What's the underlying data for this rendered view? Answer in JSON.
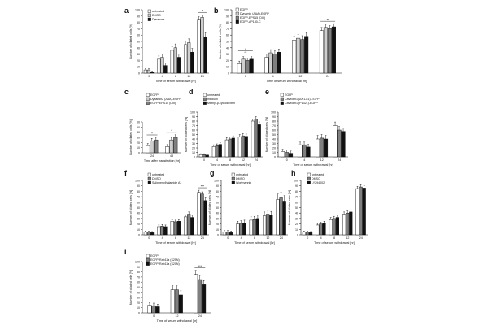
{
  "figure": {
    "colors": {
      "white": "#ffffff",
      "light": "#cfcfcf",
      "mid": "#7f7f7f",
      "black": "#111111"
    }
  },
  "chart_data": [
    {
      "panel": "a",
      "type": "bar",
      "ylabel": "Number of ciliated cells [%]",
      "xlabel": "Time of serum withdrawal [hr]",
      "ylim": [
        0,
        100
      ],
      "ticks": [
        0,
        10,
        20,
        30,
        40,
        50,
        60,
        70,
        80,
        90,
        100
      ],
      "categories": [
        "0",
        "4",
        "8",
        "12",
        "24"
      ],
      "series": [
        {
          "name": "untreated",
          "color": "white",
          "values": [
            5,
            22,
            36,
            45,
            85
          ],
          "errors": [
            2,
            5,
            6,
            6,
            4
          ]
        },
        {
          "name": "DMSO",
          "color": "light",
          "values": [
            5,
            25,
            40,
            48,
            88
          ],
          "errors": [
            2,
            5,
            6,
            6,
            4
          ]
        },
        {
          "name": "Dynasore",
          "color": "black",
          "values": [
            2,
            12,
            25,
            33,
            57
          ],
          "errors": [
            1,
            4,
            5,
            6,
            7
          ]
        }
      ],
      "sig": [
        {
          "cat": 4,
          "label": "*"
        }
      ]
    },
    {
      "panel": "b",
      "type": "bar",
      "ylabel": "Number of ciliated cells [%]",
      "xlabel": "Time of serum withdrawal [hr]",
      "ylim": [
        0,
        100
      ],
      "ticks": [
        0,
        10,
        20,
        30,
        40,
        50,
        60,
        70,
        80,
        90,
        100
      ],
      "categories": [
        "0",
        "4",
        "12",
        "24"
      ],
      "series": [
        {
          "name": "EGFP",
          "color": "white",
          "values": [
            15,
            25,
            52,
            67
          ],
          "errors": [
            4,
            5,
            6,
            5
          ]
        },
        {
          "name": "Dynamin (ΔAA)-EGFP",
          "color": "light",
          "values": [
            22,
            32,
            55,
            72
          ],
          "errors": [
            4,
            5,
            6,
            5
          ]
        },
        {
          "name": "EGFP-EPS15 (DIII)",
          "color": "mid",
          "values": [
            20,
            30,
            53,
            70
          ],
          "errors": [
            4,
            5,
            6,
            5
          ]
        },
        {
          "name": "EGFP-AP180-C",
          "color": "black",
          "values": [
            22,
            33,
            58,
            73
          ],
          "errors": [
            4,
            5,
            6,
            5
          ]
        }
      ],
      "sig": [
        {
          "cat": 0,
          "label": "**"
        },
        {
          "cat": 0,
          "label": "*"
        },
        {
          "cat": 3,
          "label": "**"
        }
      ]
    },
    {
      "panel": "c",
      "type": "bar",
      "ylabel": "Number of ciliated cells [%]",
      "xlabel": "Time after transfection [hr]",
      "ylim": [
        0,
        60
      ],
      "ticks": [
        0,
        10,
        20,
        30,
        40,
        50,
        60
      ],
      "categories": [
        "24",
        "48"
      ],
      "series": [
        {
          "name": "EGFP",
          "color": "white",
          "values": [
            14,
            12
          ],
          "errors": [
            4,
            4
          ]
        },
        {
          "name": "Dynamin2 (ΔAA)-EGFP",
          "color": "light",
          "values": [
            23,
            25
          ],
          "errors": [
            5,
            5
          ]
        },
        {
          "name": "EGFP-EPS15 (DIII)",
          "color": "mid",
          "values": [
            25,
            30
          ],
          "errors": [
            5,
            5
          ]
        }
      ],
      "sig": [
        {
          "cat": 0,
          "label": "*"
        },
        {
          "cat": 1,
          "label": "*"
        }
      ]
    },
    {
      "panel": "d",
      "type": "bar",
      "ylabel": "Number of ciliated cells [%]",
      "xlabel": "Time of serum withdrawal [hr]",
      "ylim": [
        0,
        100
      ],
      "ticks": [
        0,
        10,
        20,
        30,
        40,
        50,
        60,
        70,
        80,
        90,
        100
      ],
      "categories": [
        "0",
        "4",
        "8",
        "12",
        "24"
      ],
      "series": [
        {
          "name": "untreated",
          "color": "white",
          "values": [
            5,
            23,
            38,
            45,
            80
          ],
          "errors": [
            2,
            4,
            5,
            5,
            5
          ]
        },
        {
          "name": "medium",
          "color": "mid",
          "values": [
            5,
            25,
            40,
            47,
            85
          ],
          "errors": [
            2,
            4,
            5,
            5,
            5
          ]
        },
        {
          "name": "Methyl-β-cyclodextrin",
          "color": "black",
          "values": [
            4,
            28,
            42,
            46,
            72
          ],
          "errors": [
            2,
            4,
            5,
            5,
            6
          ]
        }
      ],
      "sig": []
    },
    {
      "panel": "e",
      "type": "bar",
      "ylabel": "Number of ciliated cells [%]",
      "xlabel": "Time of serum withdrawal [hr]",
      "ylim": [
        0,
        100
      ],
      "ticks": [
        0,
        10,
        20,
        30,
        40,
        50,
        60,
        70,
        80,
        90,
        100
      ],
      "categories": [
        "0",
        "4",
        "12",
        "24"
      ],
      "series": [
        {
          "name": "EGFP",
          "color": "white",
          "values": [
            12,
            27,
            40,
            70
          ],
          "errors": [
            5,
            6,
            8,
            8
          ]
        },
        {
          "name": "Caveolin1 (ΔN1-81)-EGFP",
          "color": "mid",
          "values": [
            10,
            27,
            42,
            60
          ],
          "errors": [
            5,
            6,
            8,
            8
          ]
        },
        {
          "name": "Caveolin1 (P132L)-EGFP",
          "color": "black",
          "values": [
            8,
            22,
            40,
            57
          ],
          "errors": [
            5,
            6,
            8,
            8
          ]
        }
      ],
      "sig": []
    },
    {
      "panel": "f",
      "type": "bar",
      "ylabel": "Number of ciliated cells [%]",
      "xlabel": "Time of serum withdrawal [hr]",
      "ylim": [
        0,
        100
      ],
      "ticks": [
        0,
        10,
        20,
        30,
        40,
        50,
        60,
        70,
        80,
        90,
        100
      ],
      "categories": [
        "0",
        "4",
        "8",
        "12",
        "24"
      ],
      "series": [
        {
          "name": "untreated",
          "color": "white",
          "values": [
            5,
            15,
            25,
            33,
            78
          ],
          "errors": [
            2,
            3,
            3,
            4,
            4
          ]
        },
        {
          "name": "DMSO",
          "color": "mid",
          "values": [
            5,
            16,
            24,
            38,
            75
          ],
          "errors": [
            2,
            3,
            3,
            4,
            4
          ]
        },
        {
          "name": "Saliphenylhalamide A1",
          "color": "black",
          "values": [
            4,
            15,
            25,
            32,
            63
          ],
          "errors": [
            2,
            3,
            3,
            4,
            5
          ]
        }
      ],
      "sig": [
        {
          "cat": 4,
          "label": "***"
        }
      ]
    },
    {
      "panel": "g",
      "type": "bar",
      "ylabel": "Number of ciliated cells [%]",
      "xlabel": "Time of serum withdrawal [hr]",
      "ylim": [
        0,
        100
      ],
      "ticks": [
        0,
        10,
        20,
        30,
        40,
        50,
        60,
        70,
        80,
        90,
        100
      ],
      "categories": [
        "0",
        "4",
        "8",
        "12",
        "24"
      ],
      "series": [
        {
          "name": "untreated",
          "color": "white",
          "values": [
            5,
            20,
            27,
            35,
            65
          ],
          "errors": [
            3,
            5,
            6,
            7,
            10
          ]
        },
        {
          "name": "DMSO",
          "color": "mid",
          "values": [
            5,
            21,
            28,
            38,
            68
          ],
          "errors": [
            3,
            5,
            6,
            7,
            10
          ]
        },
        {
          "name": "Wortmannin",
          "color": "black",
          "values": [
            4,
            22,
            30,
            36,
            62
          ],
          "errors": [
            3,
            5,
            6,
            7,
            10
          ]
        }
      ],
      "sig": []
    },
    {
      "panel": "h",
      "type": "bar",
      "ylabel": "Number of ciliated cells [%]",
      "xlabel": "Time of serum withdrawal [hr]",
      "ylim": [
        0,
        100
      ],
      "ticks": [
        0,
        10,
        20,
        30,
        40,
        50,
        60,
        70,
        80,
        90,
        100
      ],
      "categories": [
        "0",
        "4",
        "8",
        "12",
        "24"
      ],
      "series": [
        {
          "name": "untreated",
          "color": "white",
          "values": [
            5,
            18,
            28,
            38,
            85
          ],
          "errors": [
            2,
            3,
            4,
            4,
            4
          ]
        },
        {
          "name": "DMSO",
          "color": "mid",
          "values": [
            5,
            20,
            30,
            40,
            88
          ],
          "errors": [
            2,
            3,
            4,
            4,
            4
          ]
        },
        {
          "name": "LY294002",
          "color": "black",
          "values": [
            4,
            22,
            32,
            42,
            86
          ],
          "errors": [
            2,
            3,
            4,
            4,
            4
          ]
        }
      ],
      "sig": []
    },
    {
      "panel": "i",
      "type": "bar",
      "ylabel": "Number of ciliated cells [%]",
      "xlabel": "Time of serum withdrawal [hr]",
      "ylim": [
        0,
        100
      ],
      "ticks": [
        0,
        10,
        20,
        30,
        40,
        50,
        60,
        70,
        80,
        90,
        100
      ],
      "categories": [
        "0",
        "12",
        "24"
      ],
      "series": [
        {
          "name": "EGFP",
          "color": "white",
          "values": [
            15,
            45,
            75
          ],
          "errors": [
            5,
            8,
            8
          ]
        },
        {
          "name": "EGFP-Rab11a (S25N)",
          "color": "mid",
          "values": [
            14,
            45,
            65
          ],
          "errors": [
            5,
            8,
            8
          ]
        },
        {
          "name": "EGFP-Rab11a (S20N)",
          "color": "black",
          "values": [
            12,
            35,
            55
          ],
          "errors": [
            5,
            8,
            8
          ]
        }
      ],
      "sig": [
        {
          "cat": 2,
          "label": "***"
        }
      ]
    }
  ]
}
